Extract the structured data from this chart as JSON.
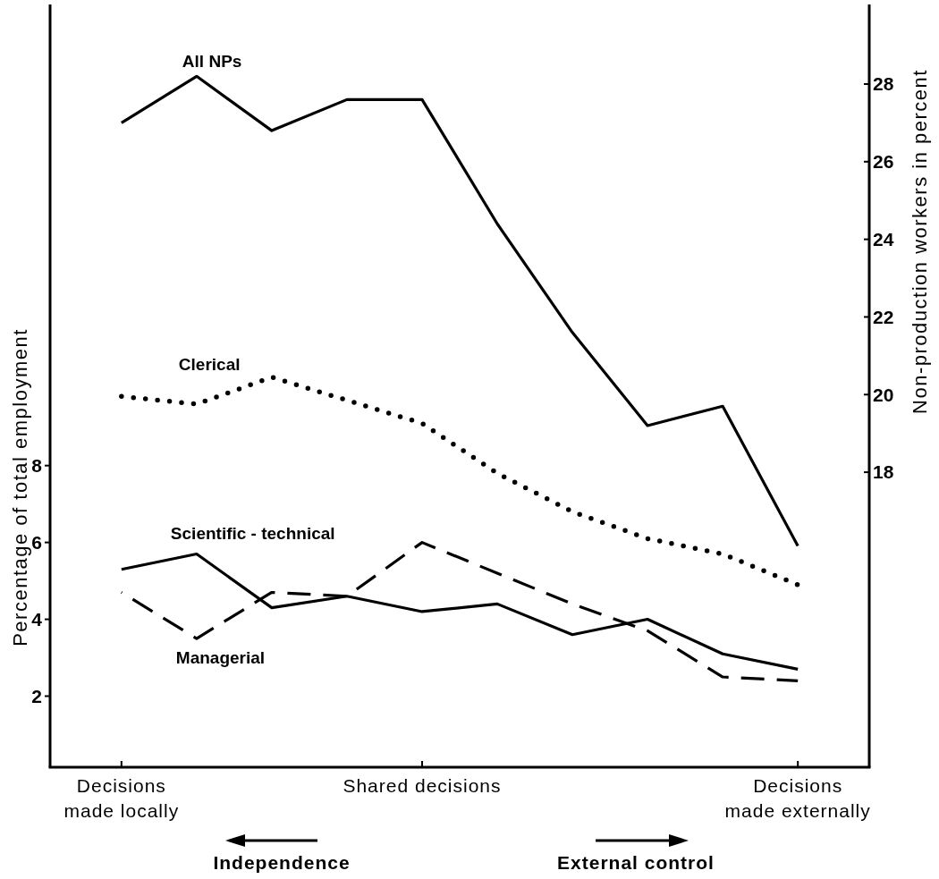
{
  "chart_data": {
    "type": "line",
    "ylabel": "Percentage of total employment",
    "y2label": "Non-production workers in percent",
    "categories": [
      "Decisions\nmade locally",
      null,
      null,
      null,
      "Shared decisions",
      null,
      null,
      null,
      null,
      "Decisions\nmade externally"
    ],
    "ylim": [
      0.15,
      20
    ],
    "yticks": [
      2,
      4,
      6,
      8
    ],
    "y2lim": [
      10.4,
      30.05
    ],
    "y2ticks": [
      18,
      20,
      22,
      24,
      26,
      28
    ],
    "grid": false,
    "marker": "none",
    "series": [
      {
        "name": "All NPs",
        "color": "#000000",
        "axis": "y2",
        "line_style": "solid",
        "values": [
          27.0,
          28.2,
          26.8,
          27.6,
          27.6,
          24.4,
          21.6,
          19.2,
          19.7,
          16.1
        ]
      },
      {
        "name": "Clerical",
        "color": "#000000",
        "axis": "y",
        "line_style": "dotted",
        "values": [
          9.8,
          9.6,
          10.3,
          9.7,
          9.1,
          7.8,
          6.8,
          6.1,
          5.7,
          4.9
        ]
      },
      {
        "name": "Scientific - technical",
        "color": "#000000",
        "axis": "y",
        "line_style": "solid",
        "values": [
          5.3,
          5.7,
          4.3,
          4.6,
          4.2,
          4.4,
          3.6,
          4.0,
          3.1,
          2.7
        ]
      },
      {
        "name": "Managerial",
        "color": "#000000",
        "axis": "y",
        "line_style": "dashed",
        "values": [
          4.7,
          3.5,
          4.7,
          4.6,
          6.0,
          5.2,
          4.4,
          3.7,
          2.5,
          2.4
        ]
      }
    ],
    "annotations": [
      "Independence",
      "External control"
    ]
  }
}
